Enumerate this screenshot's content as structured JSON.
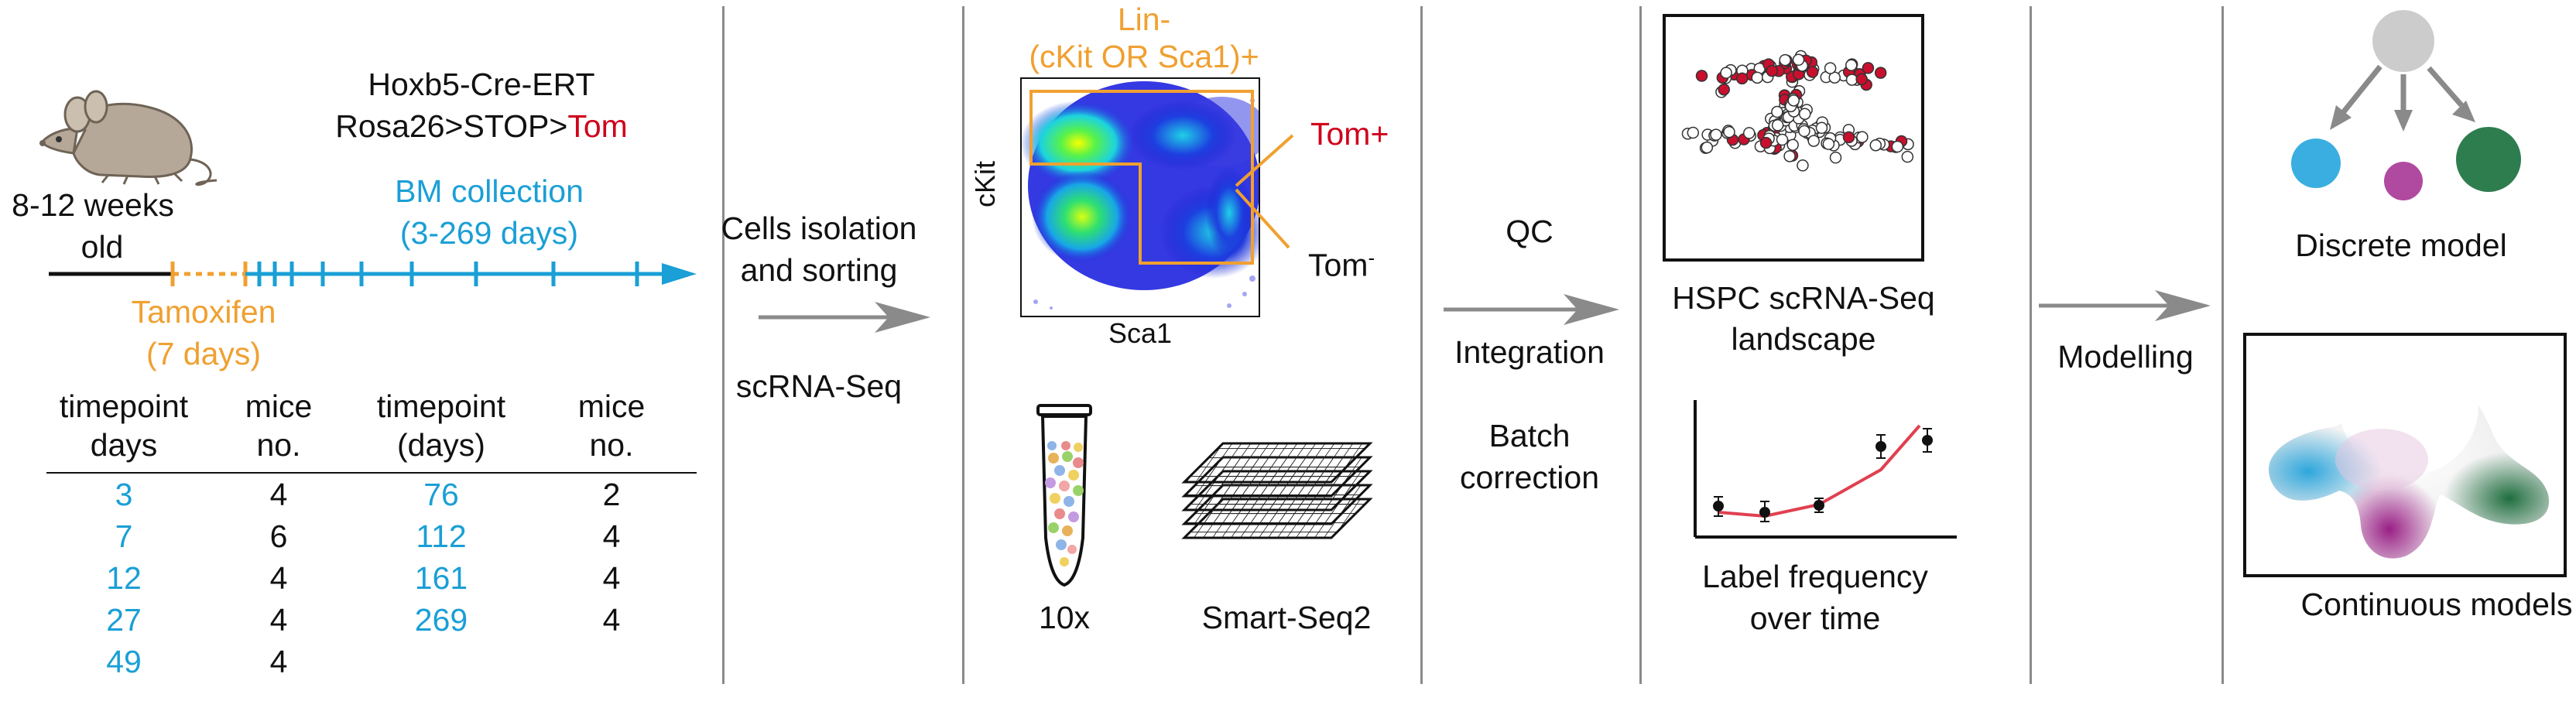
{
  "panel1": {
    "strain_line1": "Hoxb5-Cre-ERT",
    "strain_line2_prefix": "Rosa26>STOP>",
    "strain_line2_tom": "Tom",
    "age_line1": "8-12 weeks",
    "age_line2": "old",
    "collection_line1": "BM collection",
    "collection_line2": "(3-269 days)",
    "tamoxifen_line1": "Tamoxifen",
    "tamoxifen_line2": "(7 days)",
    "table": {
      "headers": [
        {
          "line1": "timepoint",
          "line2": "days"
        },
        {
          "line1": "mice",
          "line2": "no."
        },
        {
          "line1": "timepoint",
          "line2": "(days)"
        },
        {
          "line1": "mice",
          "line2": "no."
        }
      ],
      "rows": [
        [
          "3",
          "4",
          "76",
          "2"
        ],
        [
          "7",
          "6",
          "112",
          "4"
        ],
        [
          "12",
          "4",
          "161",
          "4"
        ],
        [
          "27",
          "4",
          "269",
          "4"
        ],
        [
          "49",
          "4",
          "",
          ""
        ]
      ]
    }
  },
  "panel2": {
    "step1_line1": "Cells isolation",
    "step1_line2": "and sorting",
    "step2": "scRNA-Seq"
  },
  "panel3": {
    "gate_line1": "Lin-",
    "gate_line2": "(cKit OR Sca1)+",
    "y_axis": "cKit",
    "x_axis": "Sca1",
    "tom_pos": "Tom+",
    "tom_neg": "Tom",
    "tom_neg_sup": "-",
    "platform1": "10x",
    "platform2": "Smart-Seq2"
  },
  "panel4": {
    "step1": "QC",
    "step2": "Integration",
    "step3_line1": "Batch",
    "step3_line2": "correction"
  },
  "panel5": {
    "landscape_line1": "HSPC scRNA-Seq",
    "landscape_line2": "landscape",
    "freq_line1": "Label frequency",
    "freq_line2": "over time"
  },
  "panel6": {
    "step": "Modelling"
  },
  "panel7": {
    "discrete": "Discrete model",
    "continuous": "Continuous models"
  },
  "colors": {
    "blue": "#1a9fd6",
    "orange": "#f0a030",
    "red": "#d0021b",
    "gray_arrow": "#8a8a8a",
    "discrete_blue": "#3aaee0",
    "discrete_purple": "#b04aa0",
    "discrete_green": "#2e7d4f"
  },
  "icons": {
    "mouse": "mouse-icon",
    "tube": "tube-icon",
    "plates": "plate-stack-icon"
  }
}
